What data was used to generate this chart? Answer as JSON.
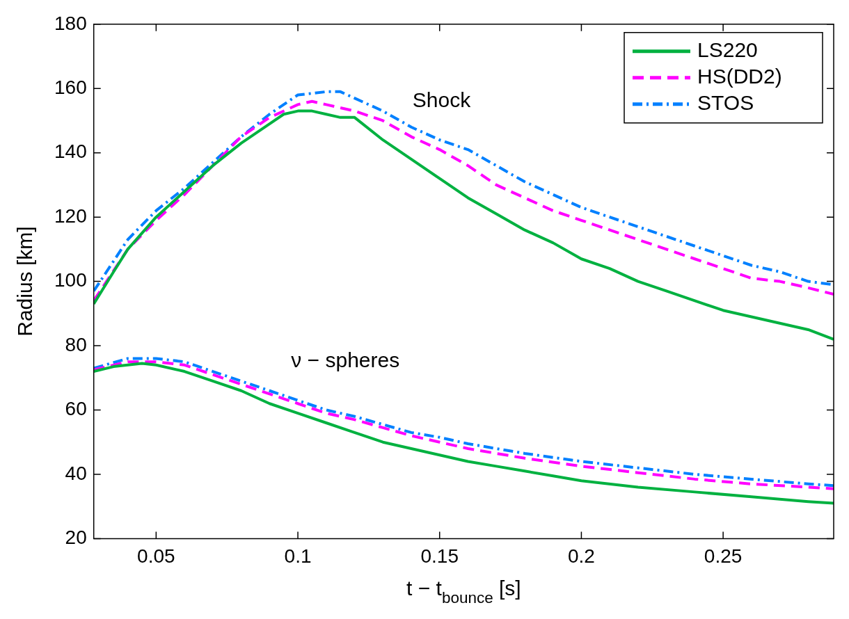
{
  "chart_data": {
    "type": "line",
    "xlabel": "t − t$_{bounce}$ [s]",
    "ylabel": "Radius [km]",
    "xlim": [
      0.028,
      0.289
    ],
    "xticks": [
      0.05,
      0.1,
      0.15,
      0.2,
      0.25
    ],
    "ylim": [
      20,
      180
    ],
    "yticks": [
      20,
      40,
      60,
      80,
      100,
      120,
      140,
      160,
      180
    ],
    "grid": false,
    "legend": "top right",
    "marker": "none",
    "annotations": [
      "Shock",
      "ν − spheres"
    ],
    "series": [
      {
        "name": "LS220",
        "color": "#00b140",
        "line_style": "solid",
        "x": [
          0.028,
          0.035,
          0.04,
          0.05,
          0.06,
          0.07,
          0.08,
          0.09,
          0.095,
          0.1,
          0.105,
          0.11,
          0.115,
          0.12,
          0.13,
          0.14,
          0.15,
          0.16,
          0.17,
          0.18,
          0.19,
          0.2,
          0.21,
          0.22,
          0.23,
          0.24,
          0.25,
          0.26,
          0.27,
          0.28,
          0.289
        ],
        "values": [
          93,
          103,
          110,
          120,
          128,
          136,
          143,
          149,
          152,
          153,
          153,
          152,
          151,
          151,
          144,
          138,
          132,
          126,
          121,
          116,
          112,
          107,
          104,
          100,
          97,
          94,
          91,
          89,
          87,
          85,
          82
        ]
      },
      {
        "name": "HS(DD2)",
        "color": "#ff00ff",
        "line_style": "dashed",
        "x": [
          0.028,
          0.04,
          0.05,
          0.06,
          0.07,
          0.08,
          0.09,
          0.1,
          0.105,
          0.11,
          0.12,
          0.13,
          0.14,
          0.15,
          0.16,
          0.17,
          0.18,
          0.19,
          0.2,
          0.21,
          0.22,
          0.23,
          0.24,
          0.25,
          0.26,
          0.27,
          0.28,
          0.289
        ],
        "values": [
          94,
          110,
          119,
          127,
          136,
          145,
          151,
          155,
          156,
          155,
          153,
          150,
          145,
          141,
          136,
          130,
          126,
          122,
          119,
          116,
          113,
          110,
          107,
          104,
          101,
          100,
          98,
          96
        ]
      },
      {
        "name": "STOS",
        "color": "#0080ff",
        "line_style": "dashdot",
        "x": [
          0.028,
          0.04,
          0.05,
          0.06,
          0.07,
          0.08,
          0.09,
          0.1,
          0.11,
          0.115,
          0.12,
          0.13,
          0.14,
          0.15,
          0.16,
          0.17,
          0.18,
          0.19,
          0.2,
          0.21,
          0.22,
          0.23,
          0.24,
          0.25,
          0.26,
          0.27,
          0.28,
          0.289
        ],
        "values": [
          97,
          113,
          122,
          129,
          137,
          145,
          152,
          158,
          159,
          159,
          157,
          153,
          148,
          144,
          141,
          136,
          131,
          127,
          123,
          120,
          117,
          114,
          111,
          108,
          105,
          103,
          100,
          99
        ]
      },
      {
        "color": "#00b140",
        "line_style": "solid",
        "x": [
          0.028,
          0.035,
          0.045,
          0.05,
          0.06,
          0.07,
          0.08,
          0.09,
          0.1,
          0.11,
          0.12,
          0.13,
          0.14,
          0.15,
          0.16,
          0.17,
          0.18,
          0.19,
          0.2,
          0.22,
          0.24,
          0.26,
          0.28,
          0.289
        ],
        "values": [
          72,
          73.5,
          74.5,
          74,
          72,
          69,
          66,
          62,
          59,
          56,
          53,
          50,
          48,
          46,
          44,
          42.5,
          41,
          39.5,
          38,
          36,
          34.5,
          33,
          31.5,
          31
        ]
      },
      {
        "color": "#ff00ff",
        "line_style": "dashed",
        "x": [
          0.028,
          0.04,
          0.05,
          0.06,
          0.07,
          0.08,
          0.09,
          0.1,
          0.11,
          0.12,
          0.13,
          0.14,
          0.15,
          0.16,
          0.17,
          0.18,
          0.2,
          0.22,
          0.24,
          0.26,
          0.28,
          0.289
        ],
        "values": [
          72.5,
          75,
          75,
          74,
          71,
          68,
          65,
          62,
          59,
          57,
          54.5,
          52,
          50,
          48,
          46.5,
          45,
          42.5,
          40.5,
          38.5,
          37,
          36,
          35.5
        ]
      },
      {
        "color": "#0080ff",
        "line_style": "dashdot",
        "x": [
          0.028,
          0.04,
          0.05,
          0.06,
          0.07,
          0.08,
          0.09,
          0.1,
          0.11,
          0.12,
          0.13,
          0.14,
          0.15,
          0.16,
          0.17,
          0.18,
          0.2,
          0.22,
          0.24,
          0.26,
          0.28,
          0.289
        ],
        "values": [
          73,
          76,
          76,
          75,
          72,
          69,
          66,
          63,
          60,
          58,
          55.5,
          53,
          51.5,
          49.5,
          48,
          46.5,
          44,
          42,
          40,
          38.5,
          37,
          36.5
        ]
      }
    ]
  }
}
